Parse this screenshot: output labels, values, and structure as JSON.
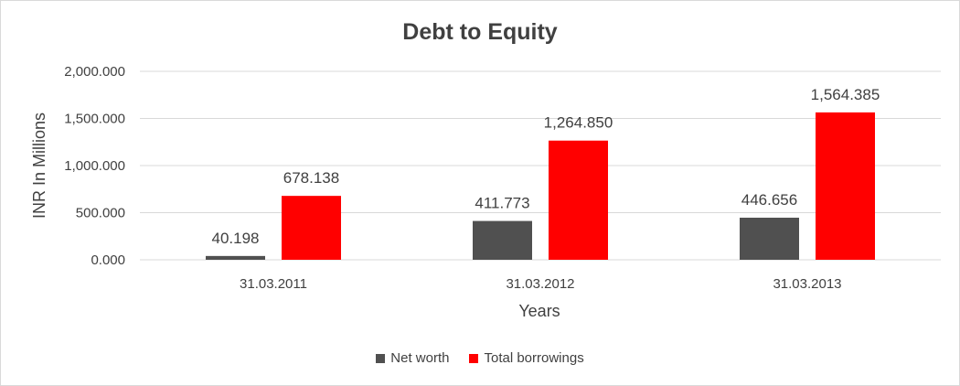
{
  "chart_data": {
    "type": "bar",
    "title": "Debt to Equity",
    "xlabel": "Years",
    "ylabel": "INR In Millions",
    "categories": [
      "31.03.2011",
      "31.03.2012",
      "31.03.2013"
    ],
    "series": [
      {
        "name": "Net worth",
        "color": "#505050",
        "values": [
          40.198,
          411.773,
          446.656
        ],
        "labels": [
          "40.198",
          "411.773",
          "446.656"
        ]
      },
      {
        "name": "Total borrowings",
        "color": "#ff0000",
        "values": [
          678.138,
          1264.85,
          1564.385
        ],
        "labels": [
          "678.138",
          "1,264.850",
          "1,564.385"
        ]
      }
    ],
    "ylim": [
      0,
      2000
    ],
    "yticks": [
      0,
      500,
      1000,
      1500,
      2000
    ],
    "ytick_labels": [
      "0.000",
      "500.000",
      "1,000.000",
      "1,500.000",
      "2,000.000"
    ],
    "grid": true,
    "legend_position": "bottom"
  }
}
